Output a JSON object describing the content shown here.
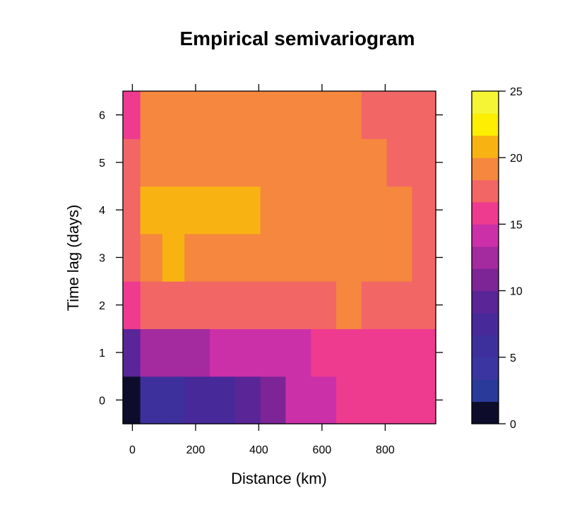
{
  "chart_data": {
    "type": "heatmap",
    "title": "Empirical semivariogram",
    "xlabel": "Distance (km)",
    "ylabel": "Time lag (days)",
    "xlim": [
      -30,
      960
    ],
    "ylim": [
      -0.5,
      6.5
    ],
    "x_ticks": [
      0,
      200,
      400,
      600,
      800
    ],
    "y_ticks": [
      0,
      1,
      2,
      3,
      4,
      5,
      6
    ],
    "x_bin_edges": [
      -30,
      25,
      95,
      165,
      245,
      325,
      405,
      485,
      565,
      645,
      725,
      805,
      885,
      960
    ],
    "y_bin_edges": [
      -0.5,
      0.5,
      1.5,
      2.5,
      3.5,
      4.5,
      5.5,
      6.5
    ],
    "rows": [
      {
        "timelag": 0,
        "values": [
          1,
          6,
          6,
          7,
          7,
          9,
          11,
          14,
          14,
          16,
          16,
          16,
          16
        ]
      },
      {
        "timelag": 1,
        "values": [
          9,
          12,
          12,
          12,
          14,
          14,
          14,
          14,
          16,
          16,
          16,
          16,
          16
        ]
      },
      {
        "timelag": 2,
        "values": [
          16,
          18,
          18,
          18,
          18,
          18,
          18,
          18,
          18,
          19,
          18,
          18,
          18
        ]
      },
      {
        "timelag": 3,
        "values": [
          18,
          19,
          21,
          19,
          19,
          19,
          19,
          19,
          19,
          19,
          19,
          19,
          18
        ]
      },
      {
        "timelag": 4,
        "values": [
          18,
          21,
          21,
          21,
          21,
          21,
          19,
          19,
          19,
          19,
          19,
          19,
          18
        ]
      },
      {
        "timelag": 5,
        "values": [
          18,
          19,
          19,
          19,
          19,
          19,
          19,
          19,
          19,
          19,
          19,
          18,
          18
        ]
      },
      {
        "timelag": 6,
        "values": [
          16,
          19,
          19,
          19,
          19,
          19,
          19,
          19,
          19,
          19,
          18,
          18,
          18
        ]
      }
    ],
    "colorbar": {
      "range": [
        0,
        25
      ],
      "ticks": [
        0,
        5,
        10,
        15,
        20,
        25
      ],
      "breaks": [
        0,
        1.67,
        3.33,
        5,
        6.67,
        8.33,
        10,
        11.67,
        13.33,
        15,
        16.67,
        18.33,
        20,
        21.67,
        23.33,
        25
      ],
      "colors": [
        "#0d0d2b",
        "#2a3a9a",
        "#3a35a0",
        "#3e309c",
        "#48299a",
        "#5a2597",
        "#7d2596",
        "#a42aa0",
        "#cc30a8",
        "#ee3a8f",
        "#f26666",
        "#f5873e",
        "#f8b313",
        "#fdee02",
        "#f5f535"
      ]
    }
  }
}
